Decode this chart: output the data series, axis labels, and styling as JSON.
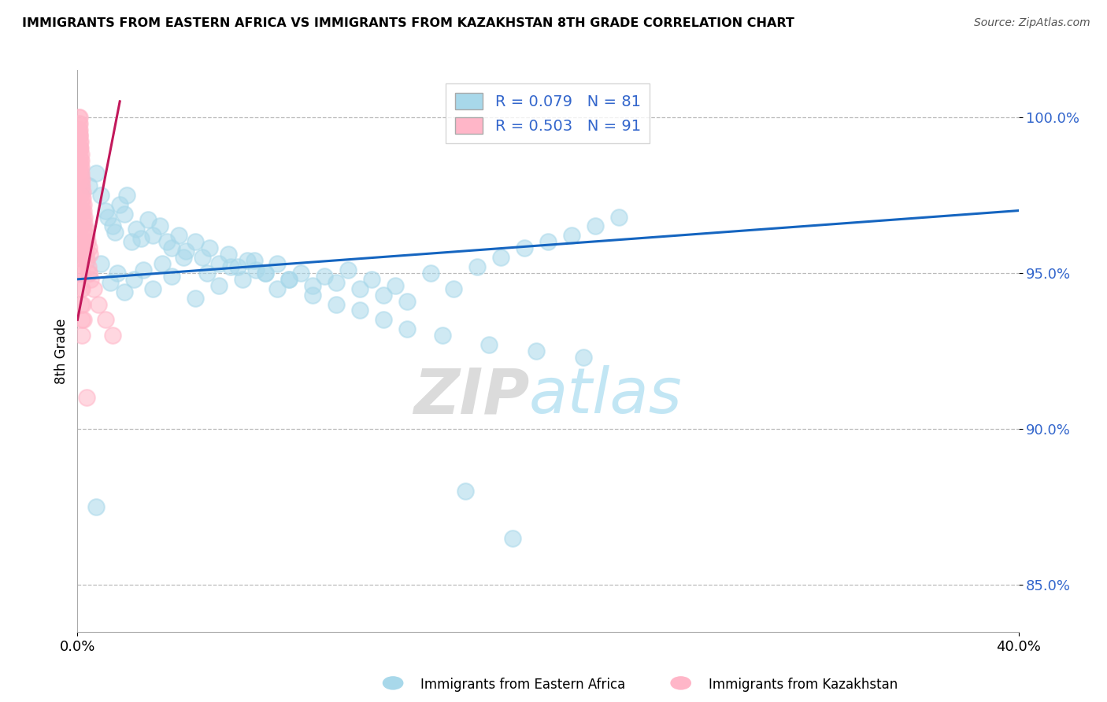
{
  "title": "IMMIGRANTS FROM EASTERN AFRICA VS IMMIGRANTS FROM KAZAKHSTAN 8TH GRADE CORRELATION CHART",
  "source": "Source: ZipAtlas.com",
  "ylabel": "8th Grade",
  "y_ticks": [
    85.0,
    90.0,
    95.0,
    100.0
  ],
  "y_tick_labels": [
    "85.0%",
    "90.0%",
    "95.0%",
    "100.0%"
  ],
  "xlim": [
    0.0,
    40.0
  ],
  "ylim": [
    83.5,
    101.5
  ],
  "R_blue": 0.079,
  "N_blue": 81,
  "R_pink": 0.503,
  "N_pink": 91,
  "legend_label_blue": "Immigrants from Eastern Africa",
  "legend_label_pink": "Immigrants from Kazakhstan",
  "scatter_color_blue": "#A8D8EA",
  "scatter_color_pink": "#FFB6C8",
  "line_color_blue": "#1565C0",
  "line_color_pink": "#C2185B",
  "blue_x": [
    0.5,
    0.8,
    1.0,
    1.2,
    1.3,
    1.5,
    1.6,
    1.8,
    2.0,
    2.1,
    2.3,
    2.5,
    2.7,
    3.0,
    3.2,
    3.5,
    3.8,
    4.0,
    4.3,
    4.6,
    5.0,
    5.3,
    5.6,
    6.0,
    6.4,
    6.8,
    7.2,
    7.6,
    8.0,
    8.5,
    9.0,
    9.5,
    10.0,
    10.5,
    11.0,
    11.5,
    12.0,
    12.5,
    13.0,
    13.5,
    14.0,
    15.0,
    16.0,
    17.0,
    18.0,
    19.0,
    20.0,
    21.0,
    22.0,
    23.0,
    1.0,
    1.4,
    1.7,
    2.0,
    2.4,
    2.8,
    3.2,
    3.6,
    4.0,
    4.5,
    5.0,
    5.5,
    6.0,
    6.5,
    7.0,
    7.5,
    8.0,
    8.5,
    9.0,
    10.0,
    11.0,
    12.0,
    13.0,
    14.0,
    15.5,
    17.5,
    19.5,
    21.5,
    16.5,
    18.5,
    0.8
  ],
  "blue_y": [
    97.8,
    98.2,
    97.5,
    97.0,
    96.8,
    96.5,
    96.3,
    97.2,
    96.9,
    97.5,
    96.0,
    96.4,
    96.1,
    96.7,
    96.2,
    96.5,
    96.0,
    95.8,
    96.2,
    95.7,
    96.0,
    95.5,
    95.8,
    95.3,
    95.6,
    95.2,
    95.4,
    95.1,
    95.0,
    95.3,
    94.8,
    95.0,
    94.6,
    94.9,
    94.7,
    95.1,
    94.5,
    94.8,
    94.3,
    94.6,
    94.1,
    95.0,
    94.5,
    95.2,
    95.5,
    95.8,
    96.0,
    96.2,
    96.5,
    96.8,
    95.3,
    94.7,
    95.0,
    94.4,
    94.8,
    95.1,
    94.5,
    95.3,
    94.9,
    95.5,
    94.2,
    95.0,
    94.6,
    95.2,
    94.8,
    95.4,
    95.0,
    94.5,
    94.8,
    94.3,
    94.0,
    93.8,
    93.5,
    93.2,
    93.0,
    92.7,
    92.5,
    92.3,
    88.0,
    86.5,
    87.5
  ],
  "pink_x": [
    0.05,
    0.05,
    0.06,
    0.07,
    0.07,
    0.08,
    0.08,
    0.09,
    0.09,
    0.1,
    0.1,
    0.11,
    0.11,
    0.12,
    0.12,
    0.13,
    0.14,
    0.14,
    0.15,
    0.15,
    0.16,
    0.17,
    0.17,
    0.18,
    0.18,
    0.19,
    0.2,
    0.2,
    0.21,
    0.22,
    0.22,
    0.23,
    0.24,
    0.25,
    0.26,
    0.27,
    0.28,
    0.29,
    0.3,
    0.32,
    0.34,
    0.36,
    0.38,
    0.4,
    0.42,
    0.45,
    0.48,
    0.5,
    0.53,
    0.56,
    0.06,
    0.08,
    0.1,
    0.12,
    0.14,
    0.16,
    0.18,
    0.2,
    0.22,
    0.25,
    0.06,
    0.07,
    0.08,
    0.09,
    0.1,
    0.06,
    0.07,
    0.08,
    0.09,
    0.1,
    0.06,
    0.07,
    0.08,
    0.09,
    0.1,
    0.11,
    0.12,
    0.13,
    0.14,
    0.15,
    0.16,
    0.17,
    0.18,
    0.19,
    0.35,
    0.5,
    0.7,
    0.9,
    1.2,
    1.5,
    0.4
  ],
  "pink_y": [
    100.0,
    99.6,
    99.8,
    99.4,
    100.0,
    99.2,
    99.8,
    99.0,
    99.6,
    98.8,
    99.4,
    98.6,
    99.2,
    98.4,
    99.0,
    98.2,
    98.8,
    98.0,
    98.6,
    97.8,
    98.4,
    97.6,
    98.2,
    97.4,
    98.0,
    97.2,
    97.8,
    97.0,
    97.6,
    96.8,
    97.4,
    96.6,
    97.2,
    96.4,
    97.0,
    96.2,
    96.8,
    96.0,
    96.6,
    95.8,
    96.4,
    95.6,
    96.2,
    95.4,
    96.0,
    95.2,
    95.8,
    95.0,
    95.6,
    94.8,
    98.0,
    97.5,
    97.0,
    96.5,
    96.0,
    95.5,
    95.0,
    94.5,
    94.0,
    93.5,
    97.0,
    96.5,
    96.0,
    95.5,
    95.0,
    98.5,
    98.0,
    97.5,
    97.0,
    96.5,
    99.5,
    99.0,
    98.5,
    98.0,
    97.5,
    97.0,
    96.5,
    96.0,
    95.5,
    95.0,
    94.5,
    94.0,
    93.5,
    93.0,
    95.5,
    95.0,
    94.5,
    94.0,
    93.5,
    93.0,
    91.0
  ],
  "blue_line_x": [
    0.0,
    40.0
  ],
  "blue_line_y": [
    94.8,
    97.0
  ],
  "pink_line_x": [
    0.0,
    1.8
  ],
  "pink_line_y": [
    93.5,
    100.5
  ]
}
